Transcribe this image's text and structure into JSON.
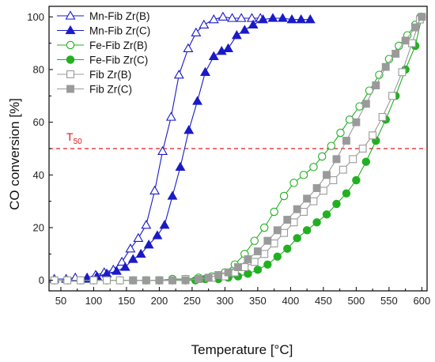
{
  "chart_data": {
    "type": "line",
    "title": "",
    "xlabel": "Temperature [°C]",
    "ylabel": "CO conversion [%]",
    "xlim": [
      32,
      608
    ],
    "ylim": [
      -4,
      104
    ],
    "xticks": [
      "50",
      "100",
      "150",
      "200",
      "250",
      "300",
      "350",
      "400",
      "450",
      "500",
      "550",
      "600"
    ],
    "yticks": [
      "0",
      "20",
      "40",
      "60",
      "80",
      "100"
    ],
    "grid": false,
    "legend_position": "top-left",
    "annotations": [
      {
        "text": "T",
        "subscript": "50",
        "value": 50,
        "color": "#e31a1c"
      }
    ],
    "series": [
      {
        "name": "Mn-Fib Zr(B)",
        "color": "#1a1ac8",
        "marker": "triangle-open",
        "x": [
          40,
          58,
          72,
          90,
          103,
          116,
          130,
          143,
          156,
          168,
          180,
          193,
          205,
          218,
          230,
          244,
          256,
          268,
          283,
          297,
          311,
          325,
          341,
          354
        ],
        "y": [
          0.5,
          0.5,
          1,
          1,
          2,
          3,
          4,
          7,
          12,
          16,
          21,
          34,
          49,
          62,
          78,
          88,
          94,
          97,
          99,
          100,
          99.5,
          99.5,
          99.5,
          99.5
        ]
      },
      {
        "name": "Mn-Fib Zr(C)",
        "color": "#1a1ac8",
        "marker": "triangle-filled",
        "x": [
          90,
          105,
          120,
          135,
          148,
          160,
          172,
          184,
          197,
          208,
          220,
          232,
          245,
          258,
          270,
          283,
          295,
          305,
          318,
          330,
          343,
          358,
          373,
          388,
          402,
          416,
          430
        ],
        "y": [
          0.5,
          1.5,
          2.5,
          3.5,
          5,
          8,
          10,
          13.5,
          17,
          21,
          32,
          43,
          57,
          68,
          79,
          85,
          87,
          88,
          93,
          95,
          97,
          99,
          99.5,
          99.5,
          99,
          99,
          99
        ]
      },
      {
        "name": "Fe-Fib Zr(B)",
        "color": "#22b022",
        "marker": "circle-open",
        "x": [
          40,
          60,
          80,
          100,
          120,
          140,
          160,
          180,
          200,
          220,
          240,
          260,
          280,
          300,
          315,
          330,
          345,
          360,
          375,
          390,
          405,
          420,
          435,
          448,
          462,
          476,
          490,
          505,
          520,
          535,
          550,
          565,
          578,
          590,
          598
        ],
        "y": [
          0,
          0,
          0,
          0,
          0,
          0,
          0,
          0,
          0,
          0.5,
          0.5,
          1,
          1.5,
          3,
          6,
          10,
          15,
          20,
          26,
          32,
          37,
          40,
          43,
          47,
          51,
          56,
          61,
          66,
          72,
          78,
          84,
          89,
          93,
          97,
          100
        ]
      },
      {
        "name": "Fe-Fib Zr(C)",
        "color": "#22b022",
        "marker": "circle-filled",
        "x": [
          200,
          220,
          240,
          255,
          270,
          290,
          305,
          320,
          335,
          350,
          365,
          380,
          395,
          410,
          425,
          440,
          455,
          470,
          485,
          500,
          515,
          530,
          545,
          560,
          575,
          590,
          600
        ],
        "y": [
          0,
          0,
          0,
          0,
          0.5,
          0.5,
          1,
          1.5,
          2.5,
          4,
          6,
          9,
          12,
          16,
          19,
          22,
          25,
          29,
          33,
          38,
          45,
          53,
          61,
          70,
          80,
          89,
          100
        ]
      },
      {
        "name": "Fib Zr(B)",
        "color": "#9a9a9a",
        "marker": "square-open",
        "x": [
          40,
          60,
          80,
          100,
          120,
          140,
          160,
          180,
          200,
          220,
          240,
          260,
          280,
          300,
          315,
          330,
          345,
          360,
          375,
          390,
          405,
          420,
          435,
          450,
          465,
          480,
          495,
          510,
          525,
          540,
          555,
          570,
          585,
          597
        ],
        "y": [
          0,
          0,
          0,
          0,
          0,
          0,
          0,
          0,
          0,
          0,
          0.5,
          0.5,
          1,
          1.5,
          3,
          5,
          7,
          10,
          14,
          18,
          22,
          26,
          30,
          34,
          38,
          42,
          46,
          50,
          55,
          62,
          70,
          79,
          90,
          99
        ]
      },
      {
        "name": "Fib Zr(C)",
        "color": "#9a9a9a",
        "marker": "square-filled",
        "x": [
          160,
          180,
          200,
          220,
          240,
          260,
          275,
          290,
          305,
          320,
          335,
          350,
          365,
          380,
          395,
          410,
          425,
          440,
          455,
          470,
          485,
          500,
          515,
          530,
          545,
          560,
          575,
          590,
          600
        ],
        "y": [
          0,
          0,
          0,
          0,
          0,
          0.5,
          1,
          2,
          3,
          5,
          8,
          11,
          15,
          19,
          23,
          27,
          31,
          35,
          40,
          46,
          53,
          60,
          67,
          74,
          81,
          86,
          91,
          96,
          100
        ]
      }
    ]
  }
}
